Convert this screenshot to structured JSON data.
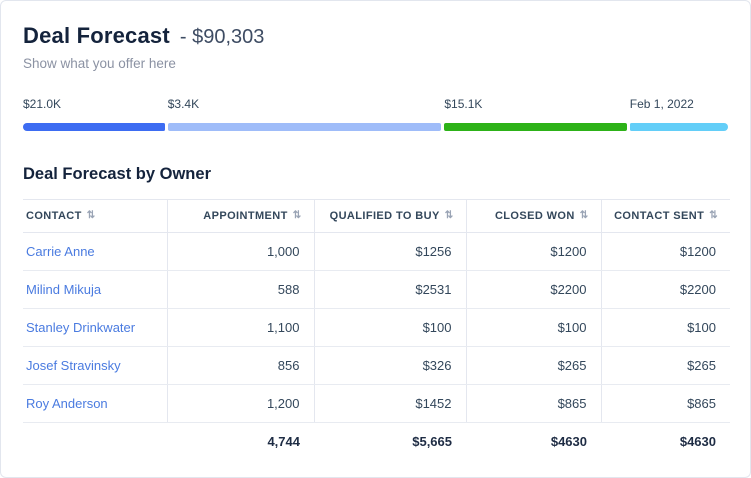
{
  "header": {
    "title": "Deal Forecast",
    "amount": "- $90,303",
    "subtitle": "Show what you offer here"
  },
  "progress": {
    "segments": [
      {
        "label": "$21.0K",
        "color": "#3d6cf2",
        "width_pct": 20.2
      },
      {
        "label": "$3.4K",
        "color": "#9fbcf9",
        "width_pct": 39.0
      },
      {
        "label": "$15.1K",
        "color": "#2db218",
        "width_pct": 26.0
      },
      {
        "label": "Feb 1, 2022",
        "color": "#63cef8",
        "width_pct": 14.0
      }
    ]
  },
  "table": {
    "title": "Deal Forecast by Owner",
    "columns": [
      "Contact",
      "Appointment",
      "Qualified to Buy",
      "Closed Won",
      "Contact Sent"
    ],
    "sort_icon": "⇅",
    "rows": [
      [
        "Carrie Anne",
        "1,000",
        "$1256",
        "$1200",
        "$1200"
      ],
      [
        "Milind Mikuja",
        "588",
        "$2531",
        "$2200",
        "$2200"
      ],
      [
        "Stanley Drinkwater",
        "1,100",
        "$100",
        "$100",
        "$100"
      ],
      [
        "Josef Stravinsky",
        "856",
        "$326",
        "$265",
        "$265"
      ],
      [
        "Roy Anderson",
        "1,200",
        "$1452",
        "$865",
        "$865"
      ]
    ],
    "totals": [
      "",
      "4,744",
      "$5,665",
      "$4630",
      "$4630"
    ]
  }
}
